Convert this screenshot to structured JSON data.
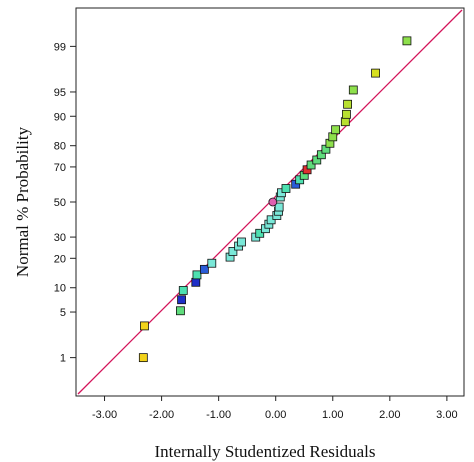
{
  "chart_data": {
    "type": "scatter",
    "title": "",
    "xlabel": "Internally Studentized Residuals",
    "ylabel": "Normal % Probability",
    "xlim": [
      -3.5,
      3.3
    ],
    "x_ticks": [
      -3.0,
      -2.0,
      -1.0,
      0.0,
      1.0,
      2.0,
      3.0
    ],
    "x_tick_labels": [
      "-3.00",
      "-2.00",
      "-1.00",
      "0.00",
      "1.00",
      "2.00",
      "3.00"
    ],
    "y_scale": "normal-probability",
    "y_ticks": [
      1,
      5,
      10,
      20,
      30,
      50,
      70,
      80,
      90,
      95,
      99
    ],
    "y_tick_labels": [
      "1",
      "5",
      "10",
      "20",
      "30",
      "50",
      "70",
      "80",
      "90",
      "95",
      "99"
    ],
    "grid": false,
    "reference_line": {
      "color": "#d4145a"
    },
    "points": [
      {
        "x": -2.32,
        "y": 1.0,
        "color": "#f2d21a",
        "shape": "square"
      },
      {
        "x": -2.3,
        "y": 3.2,
        "color": "#f2d21a",
        "shape": "square"
      },
      {
        "x": -1.67,
        "y": 5.2,
        "color": "#5fdc7c",
        "shape": "square"
      },
      {
        "x": -1.65,
        "y": 7.2,
        "color": "#1f2fc8",
        "shape": "square"
      },
      {
        "x": -1.62,
        "y": 9.3,
        "color": "#4ee0b0",
        "shape": "square"
      },
      {
        "x": -1.4,
        "y": 11.5,
        "color": "#1f2fc8",
        "shape": "square"
      },
      {
        "x": -1.38,
        "y": 13.8,
        "color": "#4ee0b0",
        "shape": "square"
      },
      {
        "x": -1.25,
        "y": 15.7,
        "color": "#2a5cd8",
        "shape": "square"
      },
      {
        "x": -1.12,
        "y": 18.0,
        "color": "#7ae8d8",
        "shape": "square"
      },
      {
        "x": -0.8,
        "y": 20.5,
        "color": "#7ae8d8",
        "shape": "square"
      },
      {
        "x": -0.75,
        "y": 23.0,
        "color": "#7ae8d8",
        "shape": "square"
      },
      {
        "x": -0.65,
        "y": 25.5,
        "color": "#7ae8d8",
        "shape": "square"
      },
      {
        "x": -0.6,
        "y": 27.5,
        "color": "#7ae8d8",
        "shape": "square"
      },
      {
        "x": -0.35,
        "y": 30.0,
        "color": "#7ae8d8",
        "shape": "square"
      },
      {
        "x": -0.28,
        "y": 32.0,
        "color": "#4ee0b0",
        "shape": "square"
      },
      {
        "x": -0.18,
        "y": 34.5,
        "color": "#7ae8d8",
        "shape": "square"
      },
      {
        "x": -0.12,
        "y": 37.0,
        "color": "#7ae8d8",
        "shape": "square"
      },
      {
        "x": -0.08,
        "y": 39.5,
        "color": "#7ae8d8",
        "shape": "square"
      },
      {
        "x": 0.02,
        "y": 42.0,
        "color": "#7ae8d8",
        "shape": "square"
      },
      {
        "x": 0.05,
        "y": 44.5,
        "color": "#7ae8d8",
        "shape": "square"
      },
      {
        "x": 0.06,
        "y": 47.0,
        "color": "#7ae8d8",
        "shape": "square"
      },
      {
        "x": -0.05,
        "y": 50.0,
        "color": "#e060b0",
        "shape": "circle"
      },
      {
        "x": 0.08,
        "y": 53.0,
        "color": "#7ae8d8",
        "shape": "square"
      },
      {
        "x": 0.1,
        "y": 55.5,
        "color": "#7ae8d8",
        "shape": "square"
      },
      {
        "x": 0.18,
        "y": 58.0,
        "color": "#4ee0b0",
        "shape": "square"
      },
      {
        "x": 0.35,
        "y": 60.5,
        "color": "#2a5cd8",
        "shape": "square"
      },
      {
        "x": 0.42,
        "y": 63.0,
        "color": "#4ee0b0",
        "shape": "square"
      },
      {
        "x": 0.5,
        "y": 65.5,
        "color": "#5fdc7c",
        "shape": "square"
      },
      {
        "x": 0.55,
        "y": 68.5,
        "color": "#e03030",
        "shape": "square"
      },
      {
        "x": 0.62,
        "y": 71.0,
        "color": "#5fdc7c",
        "shape": "square"
      },
      {
        "x": 0.72,
        "y": 73.5,
        "color": "#5fdc7c",
        "shape": "square"
      },
      {
        "x": 0.8,
        "y": 76.0,
        "color": "#5fdc7c",
        "shape": "square"
      },
      {
        "x": 0.88,
        "y": 78.5,
        "color": "#5fdc7c",
        "shape": "square"
      },
      {
        "x": 0.95,
        "y": 81.0,
        "color": "#8ee04c",
        "shape": "square"
      },
      {
        "x": 1.0,
        "y": 83.5,
        "color": "#8ee04c",
        "shape": "square"
      },
      {
        "x": 1.05,
        "y": 86.0,
        "color": "#8ee04c",
        "shape": "square"
      },
      {
        "x": 1.22,
        "y": 88.5,
        "color": "#b8e030",
        "shape": "square"
      },
      {
        "x": 1.24,
        "y": 90.5,
        "color": "#b8e030",
        "shape": "square"
      },
      {
        "x": 1.26,
        "y": 92.8,
        "color": "#b8e030",
        "shape": "square"
      },
      {
        "x": 1.36,
        "y": 95.3,
        "color": "#8ee04c",
        "shape": "square"
      },
      {
        "x": 1.75,
        "y": 97.3,
        "color": "#d8e020",
        "shape": "square"
      },
      {
        "x": 2.3,
        "y": 99.2,
        "color": "#8ee04c",
        "shape": "square"
      }
    ]
  }
}
